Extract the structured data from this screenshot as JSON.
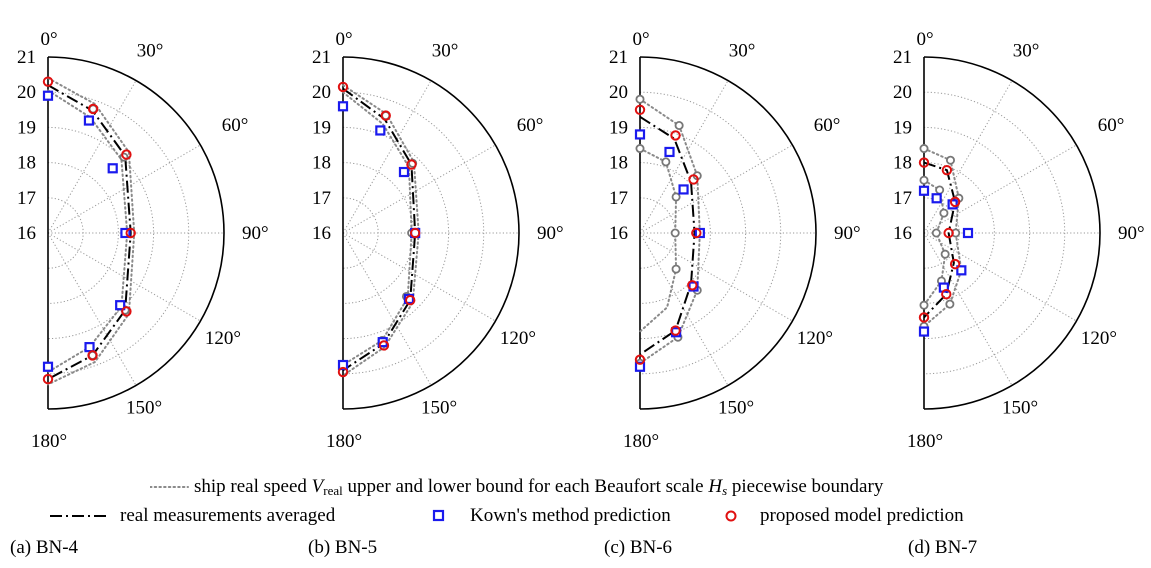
{
  "chart_data": [
    {
      "type": "polar-scatter",
      "caption": "(a) BN-4",
      "angular_ticks": [
        "0°",
        "30°",
        "60°",
        "90°",
        "120°",
        "150°",
        "180°"
      ],
      "radial_ticks": [
        "16",
        "17",
        "18",
        "19",
        "20",
        "21"
      ],
      "rlim": [
        16,
        21
      ],
      "theta_range_deg": [
        0,
        180
      ],
      "grid": true,
      "series": [
        {
          "key": "upper",
          "angles": [
            0,
            20,
            45,
            90,
            135,
            160,
            180
          ],
          "values": [
            20.4,
            19.9,
            19.25,
            18.45,
            19.25,
            19.9,
            20.3
          ]
        },
        {
          "key": "lower",
          "angles": [
            0,
            20,
            45,
            90,
            135,
            160,
            180
          ],
          "values": [
            20.05,
            19.5,
            18.95,
            18.25,
            18.95,
            19.45,
            19.95
          ]
        },
        {
          "key": "average",
          "angles": [
            0,
            20,
            45,
            90,
            135,
            160,
            180
          ],
          "values": [
            20.2,
            19.7,
            19.1,
            18.35,
            19.1,
            19.7,
            20.15
          ]
        },
        {
          "key": "upper_markers",
          "angles": [
            20,
            45,
            135,
            160
          ],
          "values": [
            19.75,
            19.05,
            19.1,
            19.7
          ]
        },
        {
          "key": "kown",
          "angles": [
            0,
            20,
            45,
            90,
            135,
            160,
            180
          ],
          "values": [
            19.9,
            19.4,
            18.6,
            18.2,
            18.9,
            19.45,
            19.8
          ]
        },
        {
          "key": "proposed",
          "angles": [
            0,
            20,
            45,
            90,
            135,
            160,
            180
          ],
          "values": [
            20.3,
            19.75,
            19.15,
            18.35,
            19.15,
            19.7,
            20.15
          ]
        }
      ]
    },
    {
      "type": "polar-scatter",
      "caption": "(b) BN-5",
      "angular_ticks": [
        "0°",
        "30°",
        "60°",
        "90°",
        "120°",
        "150°",
        "180°"
      ],
      "radial_ticks": [
        "16",
        "17",
        "18",
        "19",
        "20",
        "21"
      ],
      "rlim": [
        16,
        21
      ],
      "theta_range_deg": [
        0,
        180
      ],
      "grid": true,
      "series": [
        {
          "key": "upper",
          "angles": [
            0,
            20,
            45,
            90,
            135,
            160,
            180
          ],
          "values": [
            20.2,
            19.6,
            18.85,
            18.15,
            18.8,
            19.45,
            20.05
          ]
        },
        {
          "key": "lower",
          "angles": [
            0,
            20,
            45,
            90,
            135,
            160,
            180
          ],
          "values": [
            20.0,
            19.3,
            18.65,
            17.95,
            18.6,
            19.25,
            19.75
          ]
        },
        {
          "key": "average",
          "angles": [
            0,
            20,
            45,
            90,
            135,
            160,
            180
          ],
          "values": [
            20.1,
            19.45,
            18.75,
            18.05,
            18.7,
            19.35,
            19.9
          ]
        },
        {
          "key": "upper_markers",
          "angles": [
            20,
            45,
            90,
            135,
            160
          ],
          "values": [
            19.55,
            18.8,
            17.95,
            18.55,
            19.25
          ]
        },
        {
          "key": "kown",
          "angles": [
            0,
            20,
            45,
            90,
            135,
            160,
            180
          ],
          "values": [
            19.6,
            19.1,
            18.45,
            18.05,
            18.65,
            19.3,
            19.75
          ]
        },
        {
          "key": "proposed",
          "angles": [
            0,
            20,
            45,
            90,
            135,
            160,
            180
          ],
          "values": [
            20.15,
            19.55,
            18.75,
            18.05,
            18.7,
            19.4,
            19.95
          ]
        }
      ]
    },
    {
      "type": "polar-scatter",
      "caption": "(c) BN-6",
      "angular_ticks": [
        "0°",
        "30°",
        "60°",
        "90°",
        "120°",
        "150°",
        "180°"
      ],
      "radial_ticks": [
        "16",
        "17",
        "18",
        "19",
        "20",
        "21"
      ],
      "rlim": [
        16,
        21
      ],
      "theta_range_deg": [
        0,
        180
      ],
      "grid": true,
      "series": [
        {
          "key": "upper",
          "angles": [
            0,
            20,
            45,
            90,
            135,
            160,
            180
          ],
          "values": [
            19.8,
            19.25,
            18.3,
            17.7,
            18.3,
            19.15,
            19.7
          ]
        },
        {
          "key": "lower",
          "angles": [
            0,
            20,
            45,
            90,
            135,
            160,
            180
          ],
          "values": [
            18.4,
            18.15,
            17.45,
            17.0,
            17.45,
            18.25,
            18.8
          ]
        },
        {
          "key": "average",
          "angles": [
            0,
            20,
            45,
            90,
            135,
            160,
            180
          ],
          "values": [
            19.3,
            18.85,
            18.05,
            17.55,
            18.05,
            18.95,
            19.45
          ]
        },
        {
          "key": "upper_markers",
          "angles": [
            0,
            20,
            45,
            135,
            160,
            180
          ],
          "values": [
            19.8,
            19.25,
            18.3,
            18.3,
            19.15,
            19.7
          ]
        },
        {
          "key": "lower_markers",
          "angles": [
            0,
            20,
            45,
            90,
            135
          ],
          "values": [
            18.4,
            18.15,
            17.45,
            17.0,
            17.45
          ]
        },
        {
          "key": "kown",
          "angles": [
            0,
            20,
            45,
            90,
            135,
            160,
            180
          ],
          "values": [
            18.8,
            18.45,
            17.75,
            17.7,
            18.15,
            19.0,
            19.8
          ]
        },
        {
          "key": "proposed",
          "angles": [
            0,
            20,
            45,
            90,
            135,
            160,
            180
          ],
          "values": [
            19.5,
            18.95,
            18.15,
            17.6,
            18.1,
            18.95,
            19.6
          ]
        }
      ]
    },
    {
      "type": "polar-scatter",
      "caption": "(d) BN-7",
      "angular_ticks": [
        "0°",
        "30°",
        "60°",
        "90°",
        "120°",
        "150°",
        "180°"
      ],
      "radial_ticks": [
        "16",
        "17",
        "18",
        "19",
        "20",
        "21"
      ],
      "rlim": [
        16,
        21
      ],
      "theta_range_deg": [
        0,
        180
      ],
      "grid": true,
      "series": [
        {
          "key": "upper",
          "angles": [
            0,
            20,
            45,
            90,
            135,
            160,
            180
          ],
          "values": [
            18.4,
            18.2,
            17.4,
            16.9,
            17.5,
            18.15,
            18.65
          ]
        },
        {
          "key": "lower",
          "angles": [
            0,
            20,
            45,
            90,
            135,
            160,
            180
          ],
          "values": [
            17.5,
            17.3,
            16.8,
            16.35,
            16.85,
            17.45,
            18.05
          ]
        },
        {
          "key": "average",
          "angles": [
            0,
            20,
            45,
            90,
            135,
            160,
            180
          ],
          "values": [
            18.0,
            17.9,
            17.25,
            16.7,
            17.2,
            17.85,
            18.4
          ]
        },
        {
          "key": "upper_markers",
          "angles": [
            0,
            20,
            45,
            90,
            135,
            160,
            180
          ],
          "values": [
            18.4,
            18.2,
            17.4,
            16.9,
            17.5,
            18.15,
            18.65
          ]
        },
        {
          "key": "lower_markers",
          "angles": [
            0,
            20,
            45,
            90,
            135,
            160,
            180
          ],
          "values": [
            17.5,
            17.3,
            16.8,
            16.35,
            16.85,
            17.45,
            18.05
          ]
        },
        {
          "key": "kown",
          "angles": [
            0,
            20,
            45,
            90,
            135,
            160,
            180
          ],
          "values": [
            17.2,
            17.05,
            17.15,
            17.25,
            17.5,
            17.65,
            18.8
          ]
        },
        {
          "key": "proposed",
          "angles": [
            0,
            20,
            45,
            90,
            135,
            160,
            180
          ],
          "values": [
            18.0,
            17.9,
            17.25,
            16.7,
            17.25,
            17.85,
            18.4
          ]
        }
      ]
    }
  ],
  "legend": {
    "bounds_prefix": "ship real speed",
    "bounds_symbol": "V",
    "bounds_symbol_sub": "real",
    "bounds_middle": "upper and lower bound for each Beaufort scale",
    "bounds_symbol2": "H",
    "bounds_symbol2_sub": "s",
    "bounds_suffix": "piecewise boundary",
    "average_label": "real measurements averaged",
    "kown_label": "Kown's method prediction",
    "proposed_label": "proposed model prediction"
  },
  "colors": {
    "bounds": "#8a8a8a",
    "average": "#000000",
    "kown": "#1a1aee",
    "proposed": "#e01010",
    "grid": "#9a9a9a"
  }
}
